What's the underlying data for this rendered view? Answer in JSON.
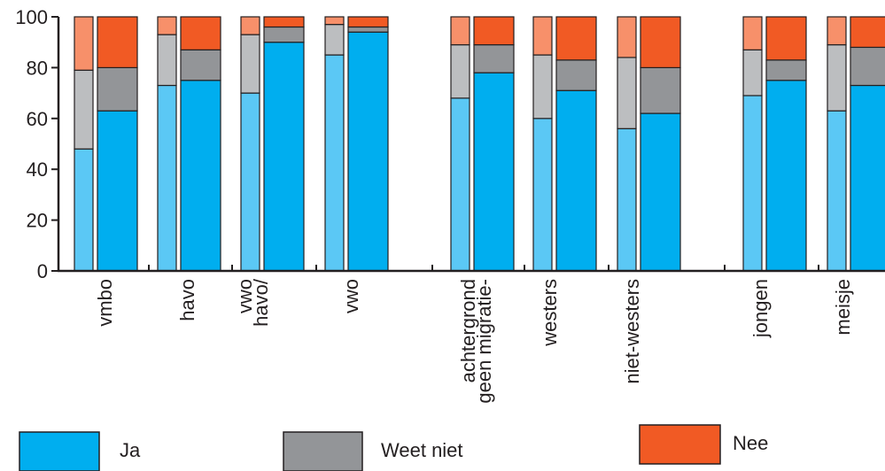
{
  "chart_data": {
    "type": "bar",
    "stacked": true,
    "title": "",
    "xlabel": "",
    "ylabel": "",
    "ylim": [
      0,
      100
    ],
    "yticks": [
      0,
      20,
      40,
      60,
      80,
      100
    ],
    "grid": false,
    "legend_position": "bottom",
    "categories": [
      {
        "label": "vmbo"
      },
      {
        "label": "havo"
      },
      {
        "label": "havo/\nvwo"
      },
      {
        "label": "vwo"
      },
      {
        "label": "geen migratie-\nachtergrond"
      },
      {
        "label": "westers"
      },
      {
        "label": "niet-westers"
      },
      {
        "label": "jongen"
      },
      {
        "label": "meisje"
      }
    ],
    "bar_groups": [
      {
        "category": "vmbo",
        "bars": [
          {
            "ja": 48,
            "weet_niet": 31,
            "nee": 21
          },
          {
            "ja": 63,
            "weet_niet": 17,
            "nee": 20
          }
        ]
      },
      {
        "category": "havo",
        "bars": [
          {
            "ja": 73,
            "weet_niet": 20,
            "nee": 7
          },
          {
            "ja": 75,
            "weet_niet": 12,
            "nee": 13
          }
        ]
      },
      {
        "category": "havo/vwo",
        "bars": [
          {
            "ja": 70,
            "weet_niet": 23,
            "nee": 7
          },
          {
            "ja": 90,
            "weet_niet": 6,
            "nee": 4
          }
        ]
      },
      {
        "category": "vwo",
        "bars": [
          {
            "ja": 85,
            "weet_niet": 12,
            "nee": 3
          },
          {
            "ja": 94,
            "weet_niet": 2,
            "nee": 4
          }
        ]
      },
      {
        "category": "geen migratie-achtergrond",
        "bars": [
          {
            "ja": 68,
            "weet_niet": 21,
            "nee": 11
          },
          {
            "ja": 78,
            "weet_niet": 11,
            "nee": 11
          }
        ]
      },
      {
        "category": "westers",
        "bars": [
          {
            "ja": 60,
            "weet_niet": 25,
            "nee": 15
          },
          {
            "ja": 71,
            "weet_niet": 12,
            "nee": 17
          }
        ]
      },
      {
        "category": "niet-westers",
        "bars": [
          {
            "ja": 56,
            "weet_niet": 28,
            "nee": 16
          },
          {
            "ja": 62,
            "weet_niet": 18,
            "nee": 20
          }
        ]
      },
      {
        "category": "jongen",
        "bars": [
          {
            "ja": 69,
            "weet_niet": 18,
            "nee": 13
          },
          {
            "ja": 75,
            "weet_niet": 8,
            "nee": 17
          }
        ]
      },
      {
        "category": "meisje",
        "bars": [
          {
            "ja": 63,
            "weet_niet": 26,
            "nee": 11
          },
          {
            "ja": 73,
            "weet_niet": 15,
            "nee": 12
          }
        ]
      }
    ],
    "series": [
      {
        "key": "ja",
        "name": "Ja",
        "color": "#00aeef",
        "light_color": "#5bc8f5"
      },
      {
        "key": "weet_niet",
        "name": "Weet niet",
        "color": "#939598",
        "light_color": "#bcbec0"
      },
      {
        "key": "nee",
        "name": "Nee",
        "color": "#f15a24",
        "light_color": "#f7906a"
      }
    ]
  }
}
